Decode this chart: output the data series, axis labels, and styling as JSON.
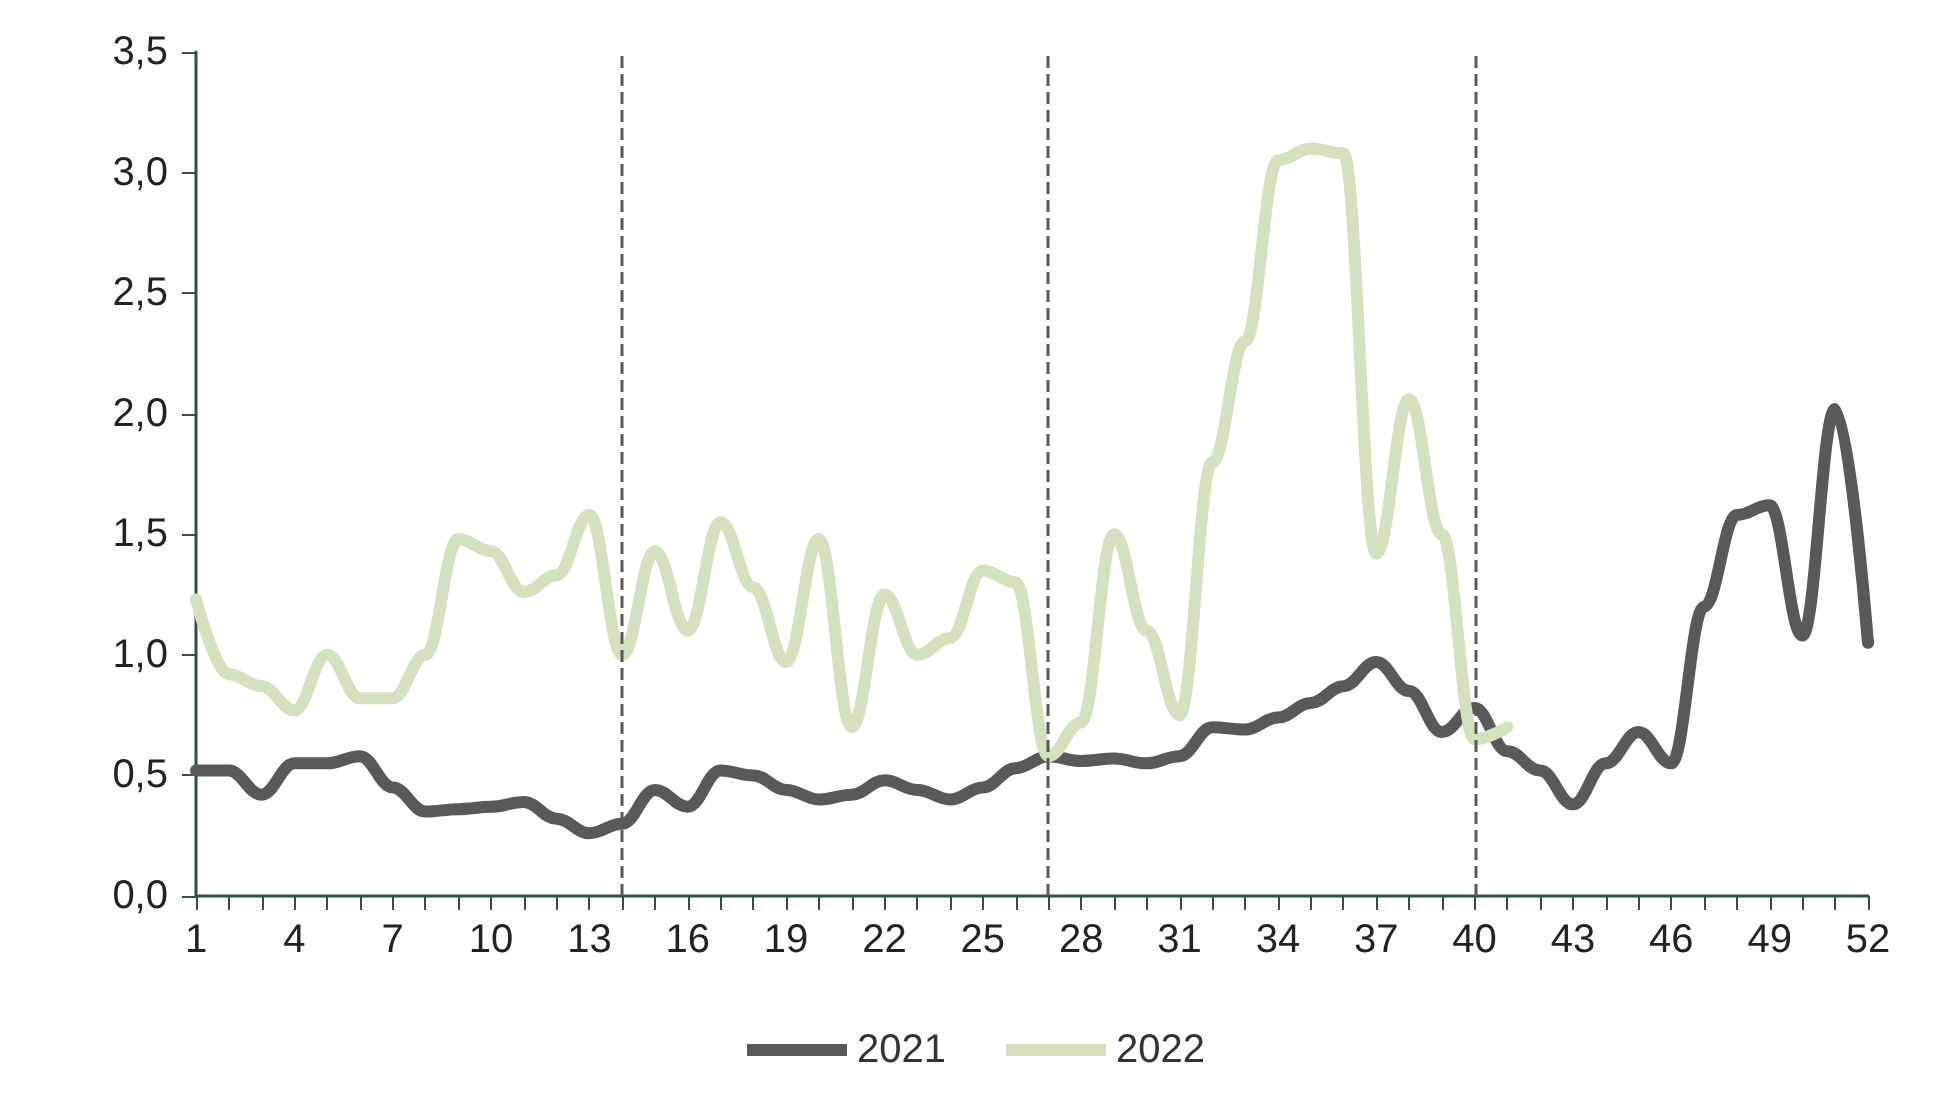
{
  "chart_data": {
    "type": "line",
    "x": [
      1,
      2,
      3,
      4,
      5,
      6,
      7,
      8,
      9,
      10,
      11,
      12,
      13,
      14,
      15,
      16,
      17,
      18,
      19,
      20,
      21,
      22,
      23,
      24,
      25,
      26,
      27,
      28,
      29,
      30,
      31,
      32,
      33,
      34,
      35,
      36,
      37,
      38,
      39,
      40,
      41,
      42,
      43,
      44,
      45,
      46,
      47,
      48,
      49,
      50,
      51,
      52
    ],
    "series": [
      {
        "name": "2021",
        "color": "#595959",
        "values": [
          0.52,
          0.52,
          0.42,
          0.55,
          0.55,
          0.58,
          0.45,
          0.35,
          0.36,
          0.37,
          0.39,
          0.32,
          0.26,
          0.3,
          0.44,
          0.37,
          0.52,
          0.5,
          0.44,
          0.4,
          0.42,
          0.48,
          0.44,
          0.4,
          0.45,
          0.53,
          0.58,
          0.56,
          0.57,
          0.55,
          0.58,
          0.7,
          0.69,
          0.74,
          0.8,
          0.87,
          0.97,
          0.85,
          0.68,
          0.78,
          0.6,
          0.52,
          0.38,
          0.55,
          0.68,
          0.55,
          1.2,
          1.58,
          1.62,
          1.08,
          2.02,
          1.05
        ]
      },
      {
        "name": "2022",
        "color": "#d3e1bf",
        "values": [
          1.23,
          0.92,
          0.87,
          0.77,
          1.0,
          0.82,
          0.82,
          1.0,
          1.48,
          1.43,
          1.26,
          1.33,
          1.58,
          1.0,
          1.43,
          1.1,
          1.55,
          1.28,
          0.97,
          1.48,
          0.7,
          1.25,
          1.0,
          1.07,
          1.35,
          1.3,
          0.58,
          0.72,
          1.5,
          1.1,
          0.75,
          1.8,
          2.3,
          3.05,
          3.1,
          3.08,
          1.42,
          2.06,
          1.5,
          0.65,
          0.7,
          null,
          null,
          null,
          null,
          null,
          null,
          null,
          null,
          null,
          null,
          null
        ]
      }
    ],
    "xlim": [
      1,
      52
    ],
    "xticks": [
      1,
      {
        "value": 2,
        "label": null
      },
      {
        "value": 3,
        "label": null
      },
      4,
      {
        "value": 5,
        "label": null
      },
      {
        "value": 6,
        "label": null
      },
      7,
      {
        "value": 8,
        "label": null
      },
      {
        "value": 9,
        "label": null
      },
      10,
      {
        "value": 11,
        "label": null
      },
      {
        "value": 12,
        "label": null
      },
      13,
      {
        "value": 14,
        "label": null
      },
      {
        "value": 15,
        "label": null
      },
      16,
      {
        "value": 17,
        "label": null
      },
      {
        "value": 18,
        "label": null
      },
      19,
      {
        "value": 20,
        "label": null
      },
      {
        "value": 21,
        "label": null
      },
      22,
      {
        "value": 23,
        "label": null
      },
      {
        "value": 24,
        "label": null
      },
      25,
      {
        "value": 26,
        "label": null
      },
      {
        "value": 27,
        "label": null
      },
      28,
      {
        "value": 29,
        "label": null
      },
      {
        "value": 30,
        "label": null
      },
      31,
      {
        "value": 32,
        "label": null
      },
      {
        "value": 33,
        "label": null
      },
      34,
      {
        "value": 35,
        "label": null
      },
      {
        "value": 36,
        "label": null
      },
      37,
      {
        "value": 38,
        "label": null
      },
      {
        "value": 39,
        "label": null
      },
      40,
      {
        "value": 41,
        "label": null
      },
      {
        "value": 42,
        "label": null
      },
      43,
      {
        "value": 44,
        "label": null
      },
      {
        "value": 45,
        "label": null
      },
      46,
      {
        "value": 47,
        "label": null
      },
      {
        "value": 48,
        "label": null
      },
      49,
      {
        "value": 50,
        "label": null
      },
      {
        "value": 51,
        "label": null
      },
      52
    ],
    "ylim": [
      0,
      3.5
    ],
    "yticks": [
      {
        "value": 0,
        "label": "0,0"
      },
      {
        "value": 0.5,
        "label": "0,5"
      },
      {
        "value": 1,
        "label": "1,0"
      },
      {
        "value": 1.5,
        "label": "1,5"
      },
      {
        "value": 2,
        "label": "2,0"
      },
      {
        "value": 2.5,
        "label": "2,5"
      },
      {
        "value": 3,
        "label": "3,0"
      },
      {
        "value": 3.5,
        "label": "3,5"
      }
    ],
    "ref_lines": [
      {
        "axis": "x",
        "value": 14,
        "color": "#595959",
        "line_style": "dashed"
      },
      {
        "axis": "x",
        "value": 27,
        "color": "#595959",
        "line_style": "dashed"
      },
      {
        "axis": "x",
        "value": 40,
        "color": "#595959",
        "line_style": "dashed"
      }
    ],
    "grid": false,
    "legend": "bottom",
    "marker": "none",
    "line_style": "solid"
  }
}
